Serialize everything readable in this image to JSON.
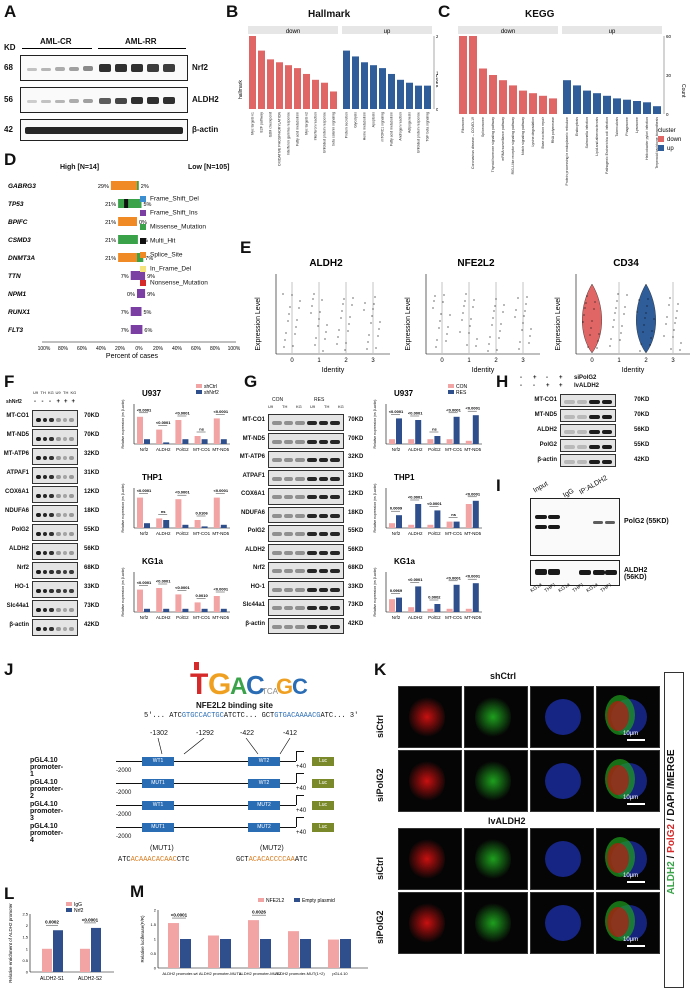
{
  "panels": {
    "a": "A",
    "b": "B",
    "c": "C",
    "d": "D",
    "e": "E",
    "f": "F",
    "g": "G",
    "h": "H",
    "i": "I",
    "j": "J",
    "k": "K",
    "l": "L",
    "m": "M"
  },
  "panel_a": {
    "kd_label": "KD",
    "groups": [
      "AML-CR",
      "AML-RR"
    ],
    "rows": [
      {
        "kd": "68",
        "name": "Nrf2"
      },
      {
        "kd": "56",
        "name": "ALDH2"
      },
      {
        "kd": "42",
        "name": "β-actin"
      }
    ]
  },
  "panel_b": {
    "title": "Hallmark",
    "facets": [
      "down",
      "up"
    ],
    "ylabel": "Count",
    "xlabel_rot": "hallmark",
    "down_terms": [
      "Myc targets v1",
      "E2F pathway",
      "G2M checkpoint",
      "OXIDATIVE PHOSPHORYLATION",
      "Interferon gamma response",
      "Fatty acid metabolism",
      "Myc targets v2",
      "Interferon reaction",
      "Unfolded protein response",
      "beta catenin signaling"
    ],
    "up_terms": [
      "Protein secretion",
      "Glycolysis",
      "Heme metabolism",
      "Apoptosis",
      "mTORC1 signaling",
      "Fatty acid metabolism",
      "Androgen reaction",
      "Adipogenesis",
      "Unfolded protein response",
      "TGF beta signaling"
    ]
  },
  "panel_c": {
    "title": "KEGG",
    "facets": [
      "down",
      "up"
    ],
    "ylabel": "Count",
    "legend_title": "cluster",
    "legend_items": [
      "down",
      "up"
    ],
    "down_terms": [
      "Ribosome",
      "Coronavirus disease – COVID-19",
      "Spliceosome",
      "Thyroid hormone signaling pathway",
      "mRNA surveillance pathway",
      "RIG-I-like receptor signaling pathway",
      "Notch signaling pathway",
      "Lysine degradation",
      "Base excision repair",
      "RNA polymerase"
    ],
    "up_terms": [
      "Protein processing in endoplasmic reticulum",
      "Endocytosis",
      "Salmonella infection",
      "Lipid and atherosclerosis",
      "Pathogenic Escherichia coli infection",
      "Tuberculosis",
      "Phagosome",
      "Lysosome",
      "Helicobacter pylori infection",
      "Terpenoid backbone biosynthesis"
    ]
  },
  "panel_d": {
    "high": "High [N=14]",
    "low": "Low [N=105]",
    "genes": [
      "GABRG3",
      "TP53",
      "BPIFC",
      "CSMD3",
      "DNMT3A",
      "TTN",
      "NPM1",
      "RUNX1",
      "FLT3"
    ],
    "high_pct": [
      "29%",
      "21%",
      "21%",
      "21%",
      "21%",
      "7%",
      "0%",
      "7%",
      "7%"
    ],
    "low_pct": [
      "2%",
      "5%",
      "0%",
      "1%",
      "7%",
      "9%",
      "9%",
      "5%",
      "6%"
    ],
    "legend": [
      {
        "label": "Frame_Shift_Del",
        "color": "#3b8fd1"
      },
      {
        "label": "Frame_Shift_Ins",
        "color": "#7b3fa3"
      },
      {
        "label": "Missense_Mutation",
        "color": "#3aa34a"
      },
      {
        "label": "Multi_Hit",
        "color": "#111111"
      },
      {
        "label": "Splice_Site",
        "color": "#f08a24"
      },
      {
        "label": "In_Frame_Del",
        "color": "#f4e27a"
      },
      {
        "label": "Nonsense_Mutation",
        "color": "#d62a2a"
      }
    ],
    "xticks": [
      "100%",
      "80%",
      "60%",
      "40%",
      "20%",
      "0%",
      "20%",
      "40%",
      "60%",
      "80%",
      "100%"
    ],
    "xlabel": "Percent of cases"
  },
  "panel_e": {
    "genes": [
      "ALDH2",
      "NFE2L2",
      "CD34"
    ],
    "ylabel": "Expression Level",
    "xlabel": "Identity",
    "identities": [
      "0",
      "1",
      "2",
      "3"
    ]
  },
  "panel_f": {
    "lane_top": "shNrf2",
    "lane_cells": [
      "U9",
      "TH",
      "KG",
      "U9",
      "TH",
      "KG"
    ],
    "lane_signs": [
      "-",
      "-",
      "-",
      "+",
      "+",
      "+"
    ],
    "rows": [
      {
        "name": "MT-CO1",
        "kd": "70KD"
      },
      {
        "name": "MT-ND5",
        "kd": "70KD"
      },
      {
        "name": "MT-ATP6",
        "kd": "32KD"
      },
      {
        "name": "ATPAF1",
        "kd": "31KD"
      },
      {
        "name": "COX6A1",
        "kd": "12KD"
      },
      {
        "name": "NDUFA6",
        "kd": "18KD"
      },
      {
        "name": "PolG2",
        "kd": "55KD"
      },
      {
        "name": "ALDH2",
        "kd": "56KD"
      },
      {
        "name": "Nrf2",
        "kd": "68KD"
      },
      {
        "name": "HO-1",
        "kd": "33KD"
      },
      {
        "name": "Slc44a1",
        "kd": "73KD"
      },
      {
        "name": "β-actin",
        "kd": "42KD"
      }
    ],
    "legend": [
      "shCtrl",
      "shNrf2"
    ],
    "ylabel": "Relative expression (vs β-actin)",
    "charts": [
      {
        "title": "U937",
        "p": [
          "<0.0001",
          "<0.0001",
          "<0.0001",
          "ns",
          "<0.0001"
        ]
      },
      {
        "title": "THP1",
        "p": [
          "<0.0001",
          "ns",
          "<0.0001",
          "0.0106",
          "<0.0001"
        ]
      },
      {
        "title": "KG1a",
        "p": [
          "<0.0001",
          "<0.0001",
          "<0.0001",
          "0.0010",
          "<0.0001"
        ]
      }
    ],
    "categories": [
      "Nrf2",
      "ALDH2",
      "PolG2",
      "MT-CO1",
      "MT-ND5"
    ]
  },
  "panel_g": {
    "groups": [
      "CON",
      "RES"
    ],
    "lane_cells": [
      "U9",
      "TH",
      "KG",
      "U9",
      "TH",
      "KG"
    ],
    "rows": [
      {
        "name": "MT-CO1",
        "kd": "70KD"
      },
      {
        "name": "MT-ND5",
        "kd": "70KD"
      },
      {
        "name": "MT-ATP6",
        "kd": "32KD"
      },
      {
        "name": "ATPAF1",
        "kd": "31KD"
      },
      {
        "name": "COX6A1",
        "kd": "12KD"
      },
      {
        "name": "NDUFA6",
        "kd": "18KD"
      },
      {
        "name": "PolG2",
        "kd": "55KD"
      },
      {
        "name": "ALDH2",
        "kd": "56KD"
      },
      {
        "name": "Nrf2",
        "kd": "68KD"
      },
      {
        "name": "HO-1",
        "kd": "33KD"
      },
      {
        "name": "Slc44a1",
        "kd": "73KD"
      },
      {
        "name": "β-actin",
        "kd": "42KD"
      }
    ],
    "legend": [
      "CON",
      "RES"
    ],
    "ylabel": "Relative expression (vs β-actin)",
    "charts": [
      {
        "title": "U937",
        "p": [
          "<0.0001",
          "<0.0001",
          "ns",
          "<0.0001",
          "<0.0001"
        ]
      },
      {
        "title": "THP1",
        "p": [
          "0.0009",
          "<0.0001",
          "<0.0001",
          "ns",
          "<0.0001"
        ]
      },
      {
        "title": "KG1a",
        "p": [
          "0.0969",
          "<0.0001",
          "0.0002",
          "<0.0001",
          "<0.0001"
        ]
      }
    ],
    "categories": [
      "Nrf2",
      "ALDH2",
      "PolG2",
      "MT-CO1",
      "MT-ND5"
    ]
  },
  "panel_h": {
    "conditions": [
      "siPolG2",
      "lvALDH2"
    ],
    "signs_row1": [
      "-",
      "+",
      "-",
      "+"
    ],
    "signs_row2": [
      "-",
      "-",
      "+",
      "+"
    ],
    "rows": [
      {
        "name": "MT-CO1",
        "kd": "70KD"
      },
      {
        "name": "MT-ND5",
        "kd": "70KD"
      },
      {
        "name": "ALDH2",
        "kd": "56KD"
      },
      {
        "name": "PolG2",
        "kd": "55KD"
      },
      {
        "name": "β-actin",
        "kd": "42KD"
      }
    ]
  },
  "panel_i": {
    "cols": [
      "Input",
      "IgG",
      "IP:ALDH2"
    ],
    "lanes": [
      "KG1a",
      "THP1",
      "KG1a",
      "THP1",
      "KG1a",
      "THP1"
    ],
    "top_label": "PolG2 (55KD)",
    "bottom_label": "ALDH2 (56KD)"
  },
  "panel_j": {
    "motif": "TGAC GC",
    "site_title": "NFE2L2 binding site",
    "seq_prefix": "5'...",
    "seq1_a": "ATC",
    "seq1_b": "GTGCCACTGC",
    "seq1_c": "ATCTC...",
    "seq2_a": "GCT",
    "seq2_b": "GTGACAAAACG",
    "seq2_c": "ATC...",
    "seq_suffix": "3'",
    "positions": [
      "-1302",
      "-1292",
      "-422",
      "-412"
    ],
    "constructs": [
      {
        "label": "pGL4.10 promoter-1",
        "site1": "WT1",
        "site2": "WT2"
      },
      {
        "label": "pGL4.10 promoter-2",
        "site1": "MUT1",
        "site2": "WT2"
      },
      {
        "label": "pGL4.10 promoter-3",
        "site1": "WT1",
        "site2": "MUT2"
      },
      {
        "label": "pGL4.10 promoter-4",
        "site1": "MUT1",
        "site2": "MUT2"
      }
    ],
    "start": "-2000",
    "end": "+40",
    "luc": "Luc",
    "mut1_label": "(MUT1)",
    "mut2_label": "(MUT2)",
    "mut1_seq_a": "ATC",
    "mut1_seq_b": "ACAAACACAAC",
    "mut1_seq_c": "CTC",
    "mut2_seq_a": "GCT",
    "mut2_seq_b": "ACACACCCCAA",
    "mut2_seq_c": "ATC"
  },
  "panel_k": {
    "groups": [
      "shCtrl",
      "lvALDH2"
    ],
    "rows": [
      "siCtrl",
      "siPolG2",
      "siCtrl",
      "siPolG2"
    ],
    "scalebar": "10μm",
    "side_label_1": "ALDH2",
    "side_label_2": " / ",
    "side_label_3": "PolG2",
    "side_label_4": " / DAPI /MERGE"
  },
  "panel_l": {
    "ylabel": "Relative enrichment of ALDH2 promoter",
    "legend": [
      "IgG",
      "Nrf2"
    ],
    "categories": [
      "ALDH2-S1",
      "ALDH2-S2"
    ],
    "p": [
      "0.0002",
      "<0.0001"
    ]
  },
  "panel_m": {
    "ylabel": "Relative luciferase(F/R)",
    "legend": [
      "NFE2L2",
      "Empty plasmid"
    ],
    "categories": [
      "ALDH2 promoter-wt",
      "ALDH2 promoter-MUT1",
      "ALDH2 promoter-MUT2",
      "ALDH2 promoter-MUT(1+2)",
      "pGL4.10"
    ],
    "p": [
      "<0.0001",
      "0.0026"
    ]
  },
  "chart_data": [
    {
      "type": "bar",
      "title": "Hallmark",
      "series": [
        {
          "name": "down",
          "values": [
            25,
            20,
            17,
            16,
            15,
            14,
            12,
            10,
            9,
            6
          ]
        },
        {
          "name": "up",
          "values": [
            20,
            18,
            16,
            15,
            14,
            12,
            10,
            9,
            8,
            8
          ]
        }
      ],
      "ylim": [
        0,
        25
      ]
    },
    {
      "type": "bar",
      "title": "KEGG",
      "series": [
        {
          "name": "down",
          "values": [
            60,
            60,
            35,
            30,
            26,
            22,
            18,
            16,
            14,
            12
          ]
        },
        {
          "name": "up",
          "values": [
            26,
            22,
            18,
            16,
            14,
            12,
            11,
            10,
            9,
            6
          ]
        }
      ],
      "ylim": [
        0,
        60
      ]
    },
    {
      "type": "bar",
      "title": "",
      "categories": [
        "ALDH2-S1",
        "ALDH2-S2"
      ],
      "series": [
        {
          "name": "IgG",
          "values": [
            1.0,
            1.0
          ]
        },
        {
          "name": "Nrf2",
          "values": [
            1.8,
            1.9
          ]
        }
      ],
      "ylim": [
        0,
        2.5
      ]
    },
    {
      "type": "bar",
      "title": "",
      "categories": [
        "ALDH2 promoter-wt",
        "ALDH2 promoter-MUT1",
        "ALDH2 promoter-MUT2",
        "ALDH2 promoter-MUT(1+2)",
        "pGL4.10"
      ],
      "series": [
        {
          "name": "NFE2L2",
          "values": [
            1.55,
            1.12,
            1.65,
            1.27,
            0.98
          ]
        },
        {
          "name": "Empty plasmid",
          "values": [
            1.0,
            1.0,
            1.0,
            1.0,
            1.0
          ]
        }
      ],
      "ylim": [
        0,
        2.0
      ]
    }
  ]
}
